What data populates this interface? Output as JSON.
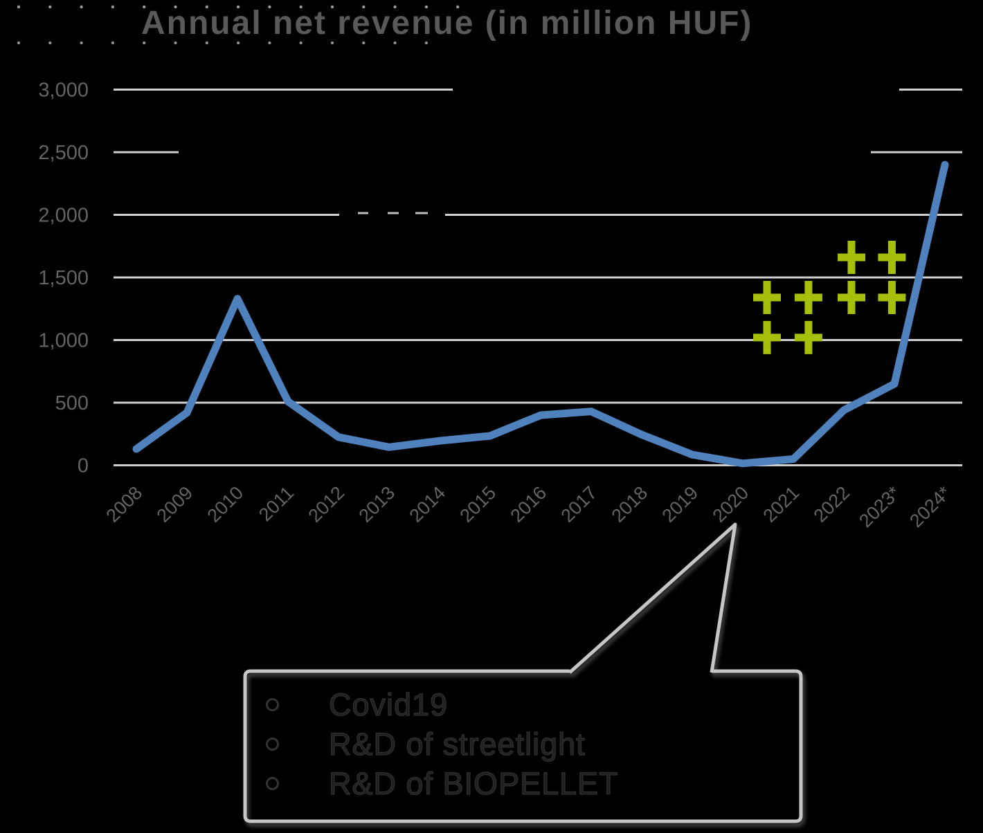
{
  "title": "Annual net revenue (in million HUF)",
  "chart_data": {
    "type": "line",
    "title": "Annual net revenue (in million HUF)",
    "categories": [
      "2008",
      "2009",
      "2010",
      "2011",
      "2012",
      "2013",
      "2014",
      "2015",
      "2016",
      "2017",
      "2018",
      "2019",
      "2020",
      "2021",
      "2022",
      "2023*",
      "2024*"
    ],
    "values": [
      130,
      420,
      1330,
      510,
      225,
      145,
      195,
      235,
      400,
      430,
      245,
      85,
      15,
      50,
      440,
      650,
      2400
    ],
    "series_name": "Annual net revenue",
    "unit": "million HUF",
    "ylim": [
      0,
      3000
    ],
    "yticks": [
      0,
      500,
      1000,
      1500,
      2000,
      2500,
      3000
    ],
    "ytick_labels": [
      "0",
      "500",
      "1,000",
      "1,500",
      "2,000",
      "2,500",
      "3,000"
    ],
    "grid": true,
    "legend": "none",
    "colors": {
      "line": "#4f81bd",
      "grid": "#cfcfcf",
      "axis_text": "#646464",
      "title_text": "#595959",
      "cross_marks": "#a6bf0b",
      "callout_border": "#c6c6c6"
    },
    "annotations": {
      "crosses": {
        "symbol": "plus",
        "color": "#a6bf0b",
        "points": [
          {
            "x_year": 2022.15,
            "value": 1660
          },
          {
            "x_year": 2022.95,
            "value": 1660
          },
          {
            "x_year": 2020.48,
            "value": 1340
          },
          {
            "x_year": 2021.3,
            "value": 1340
          },
          {
            "x_year": 2022.15,
            "value": 1340
          },
          {
            "x_year": 2022.95,
            "value": 1340
          },
          {
            "x_year": 2020.48,
            "value": 1020
          },
          {
            "x_year": 2021.3,
            "value": 1020
          }
        ]
      },
      "callout": {
        "target_year": "2020",
        "items": [
          "Covid19",
          "R&D of streetlight",
          "R&D of BIOPELLET"
        ]
      }
    }
  }
}
